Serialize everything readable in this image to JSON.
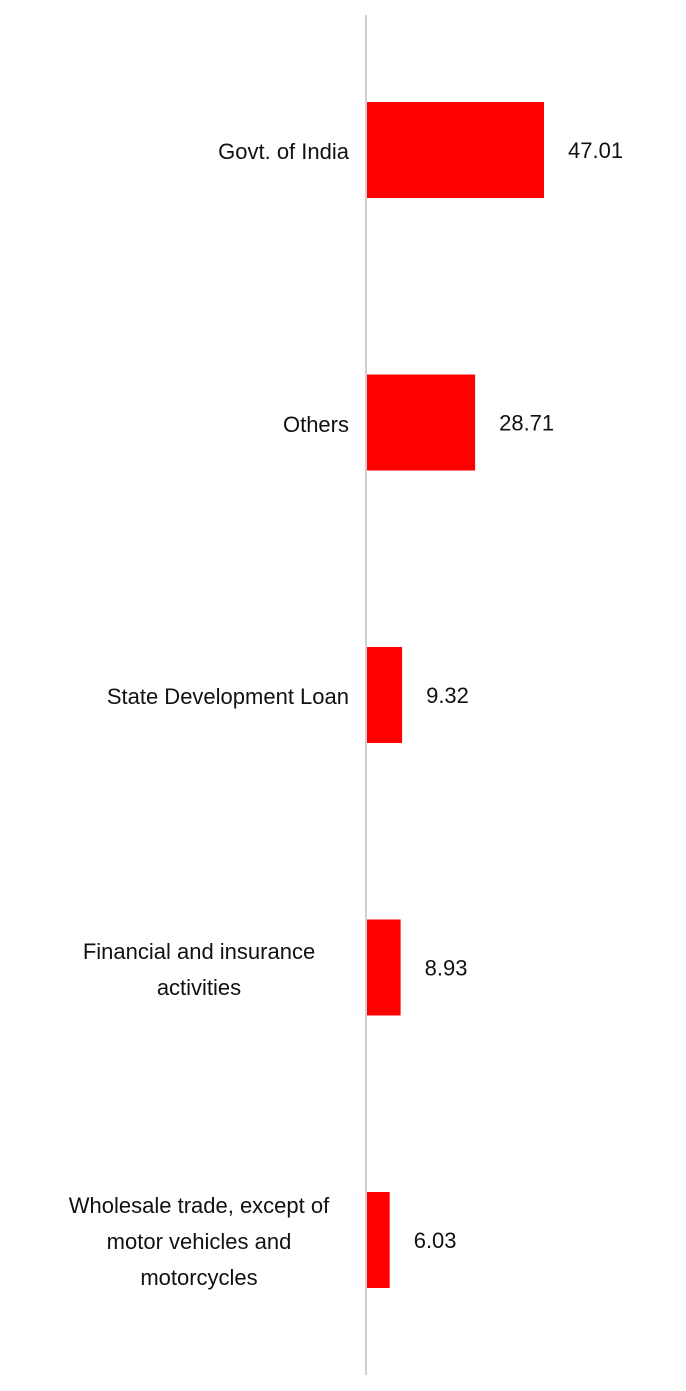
{
  "chart_data": {
    "type": "bar",
    "orientation": "horizontal",
    "categories": [
      "Govt. of India",
      "Others",
      "State Development Loan",
      "Financial and insurance activities",
      "Wholesale trade, except of motor vehicles and motorcycles"
    ],
    "values": [
      47.01,
      28.71,
      9.32,
      8.93,
      6.03
    ],
    "color": "#ff0000"
  }
}
